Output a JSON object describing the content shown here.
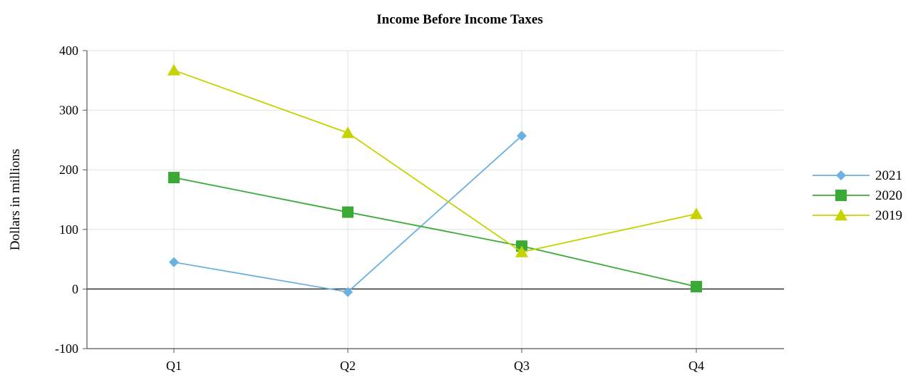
{
  "chart_data": {
    "type": "line",
    "title": "Income Before Income Taxes",
    "xlabel": "",
    "ylabel": "Dollars in millions",
    "categories": [
      "Q1",
      "Q2",
      "Q3",
      "Q4"
    ],
    "ylim": [
      -100,
      400
    ],
    "yticks": [
      400,
      300,
      200,
      100,
      0,
      -100
    ],
    "grid": true,
    "legend_position": "right",
    "series": [
      {
        "name": "2021",
        "values": [
          45,
          -5,
          257,
          null
        ],
        "color": "#6ab0e0",
        "marker": "diamond"
      },
      {
        "name": "2020",
        "values": [
          187,
          129,
          72,
          4
        ],
        "color": "#3aaa35",
        "marker": "square"
      },
      {
        "name": "2019",
        "values": [
          367,
          262,
          62,
          126
        ],
        "color": "#c6d300",
        "marker": "triangle"
      }
    ]
  }
}
